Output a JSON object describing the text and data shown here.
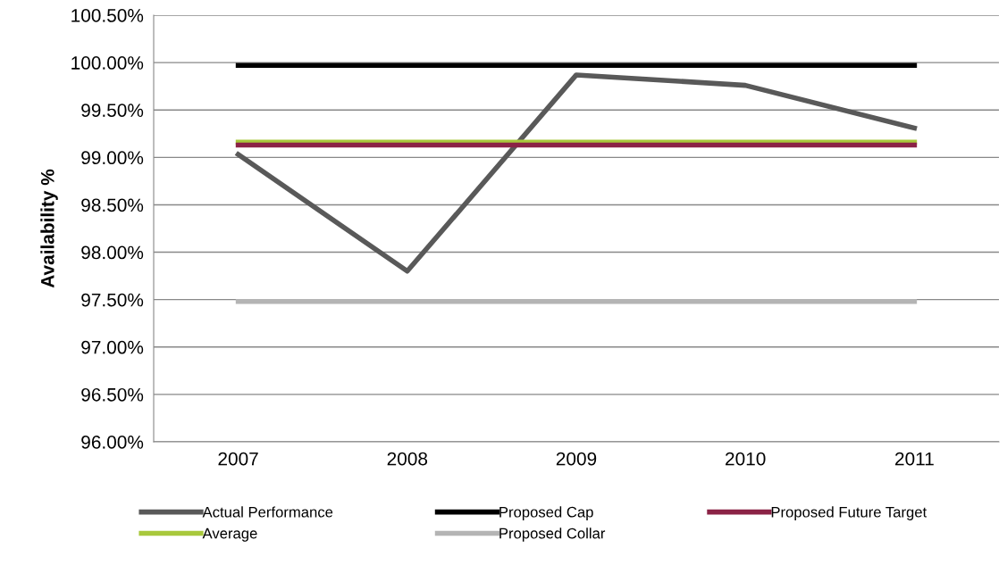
{
  "chart_data": {
    "type": "line",
    "ylabel": "Availability %",
    "categories": [
      "2007",
      "2008",
      "2009",
      "2010",
      "2011"
    ],
    "series": [
      {
        "name": "Actual Performance",
        "color": "#595959",
        "values": [
          99.03,
          97.8,
          99.87,
          99.76,
          99.31
        ]
      },
      {
        "name": "Average",
        "color": "#a8c83c",
        "values": [
          99.16,
          99.16,
          99.16,
          99.16,
          99.16
        ]
      },
      {
        "name": "Proposed Cap",
        "color": "#000000",
        "values": [
          99.97,
          99.97,
          99.97,
          99.97,
          99.97
        ]
      },
      {
        "name": "Proposed Collar",
        "color": "#b4b4b4",
        "values": [
          97.48,
          97.48,
          97.48,
          97.48,
          97.48
        ]
      },
      {
        "name": "Proposed Future Target",
        "color": "#8b2346",
        "values": [
          99.13,
          99.13,
          99.13,
          99.13,
          99.13
        ]
      }
    ],
    "ylim": [
      96.0,
      100.5
    ],
    "yticks": [
      {
        "value": 96.0,
        "label": "96.00%"
      },
      {
        "value": 96.5,
        "label": "96.50%"
      },
      {
        "value": 97.0,
        "label": "97.00%"
      },
      {
        "value": 97.5,
        "label": "97.50%"
      },
      {
        "value": 98.0,
        "label": "98.00%"
      },
      {
        "value": 98.5,
        "label": "98.50%"
      },
      {
        "value": 99.0,
        "label": "99.00%"
      },
      {
        "value": 99.5,
        "label": "99.50%"
      },
      {
        "value": 100.0,
        "label": "100.00%"
      },
      {
        "value": 100.5,
        "label": "100.50%"
      }
    ],
    "grid": "y",
    "legend": "bottom",
    "marker": "none",
    "line_style": "solid"
  }
}
